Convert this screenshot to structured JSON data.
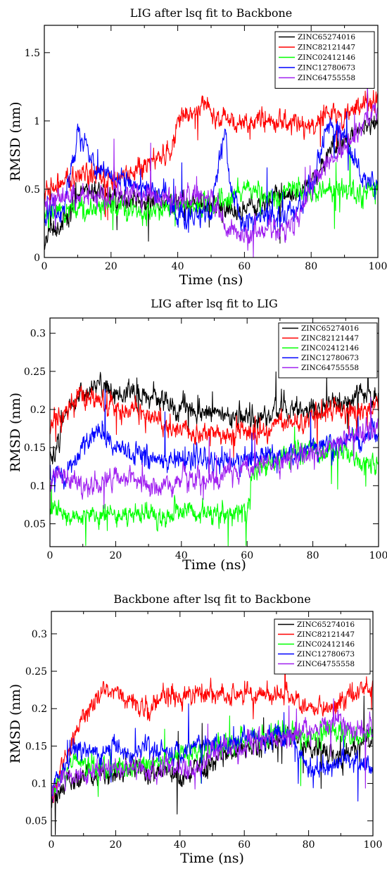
{
  "chart_data": [
    {
      "type": "line",
      "title": "LIG after lsq fit to Backbone",
      "xlabel": "Time (ns)",
      "ylabel": "RMSD (nm)",
      "xlim": [
        0,
        100
      ],
      "ylim": [
        0,
        1.7
      ],
      "xticks": [
        0,
        20,
        40,
        60,
        80,
        100
      ],
      "yticks": [
        0,
        0.5,
        1,
        1.5
      ],
      "ytick_labels": [
        "0",
        "0.5",
        "1",
        "1.5"
      ],
      "legend_position": "top-right",
      "series": [
        {
          "name": "ZINC65274016",
          "color": "#000000",
          "x": [
            0,
            5,
            10,
            15,
            20,
            25,
            30,
            35,
            40,
            45,
            50,
            55,
            60,
            65,
            70,
            75,
            80,
            85,
            90,
            95,
            100
          ],
          "values": [
            0.15,
            0.25,
            0.45,
            0.5,
            0.45,
            0.42,
            0.4,
            0.4,
            0.4,
            0.38,
            0.38,
            0.35,
            0.35,
            0.4,
            0.45,
            0.48,
            0.55,
            0.75,
            0.85,
            0.95,
            1.0
          ]
        },
        {
          "name": "ZINC82121447",
          "color": "#ff0000",
          "x": [
            0,
            5,
            10,
            15,
            20,
            25,
            30,
            35,
            38,
            40,
            45,
            48,
            50,
            55,
            60,
            65,
            70,
            75,
            80,
            85,
            90,
            95,
            100
          ],
          "values": [
            0.45,
            0.55,
            0.6,
            0.6,
            0.55,
            0.6,
            0.65,
            0.75,
            0.78,
            1.0,
            1.05,
            1.12,
            1.05,
            1.0,
            1.0,
            1.0,
            1.0,
            0.98,
            0.95,
            1.05,
            1.05,
            1.1,
            1.15
          ]
        },
        {
          "name": "ZINC02412146",
          "color": "#00ff00",
          "x": [
            0,
            5,
            10,
            15,
            20,
            25,
            30,
            35,
            40,
            45,
            50,
            55,
            60,
            65,
            70,
            75,
            80,
            85,
            90,
            95,
            100
          ],
          "values": [
            0.3,
            0.35,
            0.35,
            0.35,
            0.4,
            0.38,
            0.35,
            0.35,
            0.38,
            0.38,
            0.4,
            0.45,
            0.5,
            0.45,
            0.45,
            0.5,
            0.45,
            0.5,
            0.5,
            0.48,
            0.5
          ]
        },
        {
          "name": "ZINC12780673",
          "color": "#0000ff",
          "x": [
            0,
            5,
            10,
            15,
            20,
            25,
            30,
            35,
            40,
            45,
            50,
            54,
            56,
            60,
            65,
            70,
            75,
            80,
            85,
            90,
            95,
            100
          ],
          "values": [
            0.35,
            0.3,
            0.9,
            0.7,
            0.6,
            0.55,
            0.5,
            0.5,
            0.3,
            0.3,
            0.35,
            0.9,
            0.5,
            0.25,
            0.3,
            0.3,
            0.35,
            0.5,
            1.0,
            0.9,
            0.6,
            0.5
          ]
        },
        {
          "name": "ZINC64755558",
          "color": "#a020f0",
          "x": [
            0,
            5,
            10,
            15,
            20,
            25,
            30,
            35,
            40,
            45,
            50,
            55,
            60,
            65,
            70,
            75,
            80,
            85,
            90,
            95,
            100
          ],
          "values": [
            0.4,
            0.45,
            0.45,
            0.45,
            0.45,
            0.45,
            0.45,
            0.45,
            0.42,
            0.45,
            0.45,
            0.2,
            0.15,
            0.2,
            0.2,
            0.22,
            0.5,
            0.7,
            0.8,
            0.95,
            1.1
          ]
        }
      ]
    },
    {
      "type": "line",
      "title": "LIG after lsq fit to LIG",
      "xlabel": "Time (ns)",
      "ylabel": "RMSD (nm)",
      "xlim": [
        0,
        100
      ],
      "ylim": [
        0.02,
        0.32
      ],
      "xticks": [
        0,
        20,
        40,
        60,
        80,
        100
      ],
      "yticks": [
        0.05,
        0.1,
        0.15,
        0.2,
        0.25,
        0.3
      ],
      "ytick_labels": [
        "0.05",
        "0.1",
        "0.15",
        "0.2",
        "0.25",
        "0.3"
      ],
      "legend_position": "top-right",
      "series": [
        {
          "name": "ZINC65274016",
          "color": "#000000",
          "x": [
            0,
            5,
            10,
            15,
            20,
            25,
            30,
            35,
            40,
            45,
            50,
            55,
            60,
            65,
            70,
            75,
            80,
            85,
            90,
            95,
            100
          ],
          "values": [
            0.12,
            0.2,
            0.22,
            0.23,
            0.22,
            0.22,
            0.22,
            0.21,
            0.2,
            0.2,
            0.2,
            0.19,
            0.19,
            0.19,
            0.2,
            0.2,
            0.2,
            0.21,
            0.21,
            0.22,
            0.22
          ]
        },
        {
          "name": "ZINC82121447",
          "color": "#ff0000",
          "x": [
            0,
            5,
            10,
            15,
            20,
            25,
            30,
            35,
            40,
            45,
            50,
            55,
            60,
            65,
            70,
            75,
            80,
            85,
            90,
            95,
            100
          ],
          "values": [
            0.18,
            0.2,
            0.22,
            0.21,
            0.2,
            0.2,
            0.2,
            0.18,
            0.17,
            0.17,
            0.17,
            0.17,
            0.17,
            0.17,
            0.18,
            0.18,
            0.19,
            0.2,
            0.2,
            0.2,
            0.21
          ]
        },
        {
          "name": "ZINC02412146",
          "color": "#00ff00",
          "x": [
            0,
            5,
            10,
            15,
            20,
            25,
            30,
            35,
            40,
            45,
            50,
            55,
            60,
            62,
            65,
            70,
            75,
            80,
            85,
            90,
            95,
            100
          ],
          "values": [
            0.07,
            0.06,
            0.06,
            0.06,
            0.06,
            0.06,
            0.06,
            0.06,
            0.065,
            0.065,
            0.06,
            0.06,
            0.065,
            0.12,
            0.13,
            0.14,
            0.14,
            0.15,
            0.14,
            0.14,
            0.13,
            0.13
          ]
        },
        {
          "name": "ZINC12780673",
          "color": "#0000ff",
          "x": [
            0,
            5,
            10,
            15,
            20,
            25,
            30,
            35,
            40,
            45,
            50,
            55,
            60,
            65,
            70,
            75,
            80,
            85,
            90,
            95,
            100
          ],
          "values": [
            0.11,
            0.11,
            0.15,
            0.17,
            0.15,
            0.14,
            0.14,
            0.13,
            0.14,
            0.14,
            0.13,
            0.13,
            0.13,
            0.14,
            0.14,
            0.14,
            0.15,
            0.15,
            0.16,
            0.16,
            0.17
          ]
        },
        {
          "name": "ZINC64755558",
          "color": "#a020f0",
          "x": [
            0,
            5,
            10,
            15,
            20,
            25,
            30,
            35,
            40,
            45,
            50,
            55,
            60,
            65,
            70,
            75,
            80,
            85,
            90,
            95,
            100
          ],
          "values": [
            0.11,
            0.11,
            0.1,
            0.1,
            0.11,
            0.11,
            0.1,
            0.1,
            0.11,
            0.11,
            0.11,
            0.12,
            0.12,
            0.13,
            0.13,
            0.14,
            0.14,
            0.15,
            0.16,
            0.17,
            0.18
          ]
        }
      ]
    },
    {
      "type": "line",
      "title": "Backbone after lsq fit to Backbone",
      "xlabel": "Time (ns)",
      "ylabel": "RMSD (nm)",
      "xlim": [
        0,
        100
      ],
      "ylim": [
        0.03,
        0.33
      ],
      "xticks": [
        0,
        20,
        40,
        60,
        80,
        100
      ],
      "yticks": [
        0.05,
        0.1,
        0.15,
        0.2,
        0.25,
        0.3
      ],
      "ytick_labels": [
        "0.05",
        "0.1",
        "0.15",
        "0.2",
        "0.25",
        "0.3"
      ],
      "legend_position": "top-right",
      "series": [
        {
          "name": "ZINC65274016",
          "color": "#000000",
          "x": [
            0,
            5,
            10,
            15,
            20,
            25,
            30,
            35,
            40,
            45,
            50,
            55,
            60,
            65,
            70,
            75,
            80,
            85,
            90,
            95,
            100
          ],
          "values": [
            0.08,
            0.1,
            0.11,
            0.11,
            0.11,
            0.12,
            0.11,
            0.12,
            0.11,
            0.12,
            0.13,
            0.14,
            0.15,
            0.15,
            0.16,
            0.16,
            0.15,
            0.14,
            0.13,
            0.15,
            0.16
          ]
        },
        {
          "name": "ZINC82121447",
          "color": "#ff0000",
          "x": [
            0,
            5,
            10,
            15,
            20,
            25,
            30,
            35,
            40,
            45,
            50,
            55,
            60,
            65,
            70,
            75,
            80,
            85,
            90,
            95,
            100
          ],
          "values": [
            0.08,
            0.14,
            0.19,
            0.22,
            0.22,
            0.21,
            0.2,
            0.22,
            0.21,
            0.22,
            0.22,
            0.22,
            0.22,
            0.22,
            0.22,
            0.22,
            0.2,
            0.2,
            0.21,
            0.22,
            0.23
          ]
        },
        {
          "name": "ZINC02412146",
          "color": "#00ff00",
          "x": [
            0,
            5,
            10,
            15,
            20,
            25,
            30,
            35,
            40,
            45,
            50,
            55,
            60,
            65,
            70,
            75,
            80,
            85,
            90,
            95,
            100
          ],
          "values": [
            0.09,
            0.12,
            0.13,
            0.12,
            0.12,
            0.12,
            0.13,
            0.13,
            0.14,
            0.14,
            0.15,
            0.15,
            0.16,
            0.16,
            0.17,
            0.17,
            0.16,
            0.17,
            0.17,
            0.16,
            0.17
          ]
        },
        {
          "name": "ZINC12780673",
          "color": "#0000ff",
          "x": [
            0,
            5,
            10,
            15,
            20,
            25,
            30,
            35,
            40,
            45,
            50,
            55,
            60,
            65,
            70,
            75,
            80,
            85,
            90,
            95,
            100
          ],
          "values": [
            0.09,
            0.13,
            0.15,
            0.14,
            0.15,
            0.14,
            0.15,
            0.14,
            0.14,
            0.15,
            0.15,
            0.15,
            0.16,
            0.16,
            0.17,
            0.16,
            0.12,
            0.12,
            0.13,
            0.13,
            0.12
          ]
        },
        {
          "name": "ZINC64755558",
          "color": "#a020f0",
          "x": [
            0,
            5,
            10,
            15,
            20,
            25,
            30,
            35,
            40,
            45,
            50,
            55,
            60,
            65,
            70,
            75,
            80,
            85,
            90,
            95,
            100
          ],
          "values": [
            0.09,
            0.11,
            0.11,
            0.12,
            0.12,
            0.12,
            0.12,
            0.12,
            0.12,
            0.12,
            0.14,
            0.15,
            0.15,
            0.16,
            0.16,
            0.17,
            0.17,
            0.18,
            0.18,
            0.17,
            0.17
          ]
        }
      ]
    }
  ]
}
